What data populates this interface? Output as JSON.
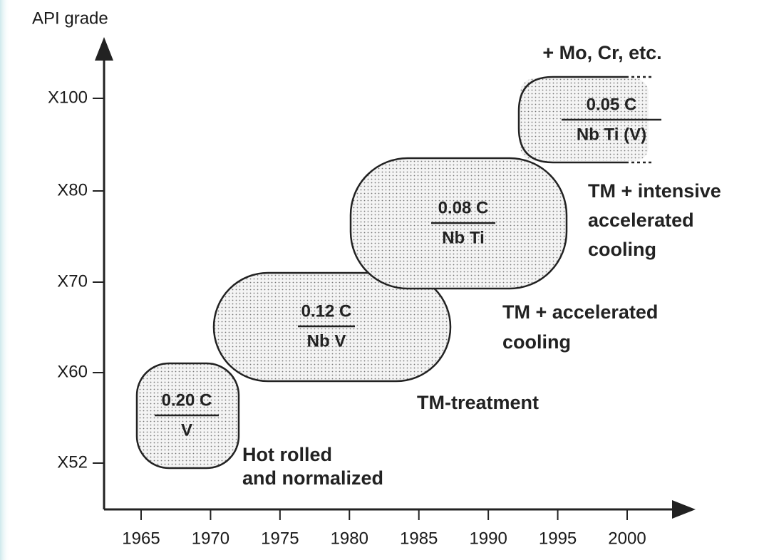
{
  "y_axis": {
    "label": "API grade",
    "ticks": [
      "X52",
      "X60",
      "X70",
      "X80",
      "X100"
    ]
  },
  "x_axis": {
    "ticks": [
      1965,
      1970,
      1975,
      1980,
      1985,
      1990,
      1995,
      2000
    ]
  },
  "regions": [
    {
      "numerator": "0.20 C",
      "denominator": "V",
      "label": [
        "Hot rolled",
        "and normalized"
      ]
    },
    {
      "numerator": "0.12 C",
      "denominator": "Nb V",
      "label": [
        "TM-treatment"
      ]
    },
    {
      "numerator": "0.08 C",
      "denominator": "Nb Ti",
      "label": [
        "TM + accelerated",
        "cooling"
      ]
    },
    {
      "numerator": "0.05 C",
      "denominator": "Nb Ti (V)",
      "label": [
        "TM + intensive",
        "accelerated",
        "cooling"
      ]
    }
  ],
  "annotation": "+ Mo, Cr, etc."
}
